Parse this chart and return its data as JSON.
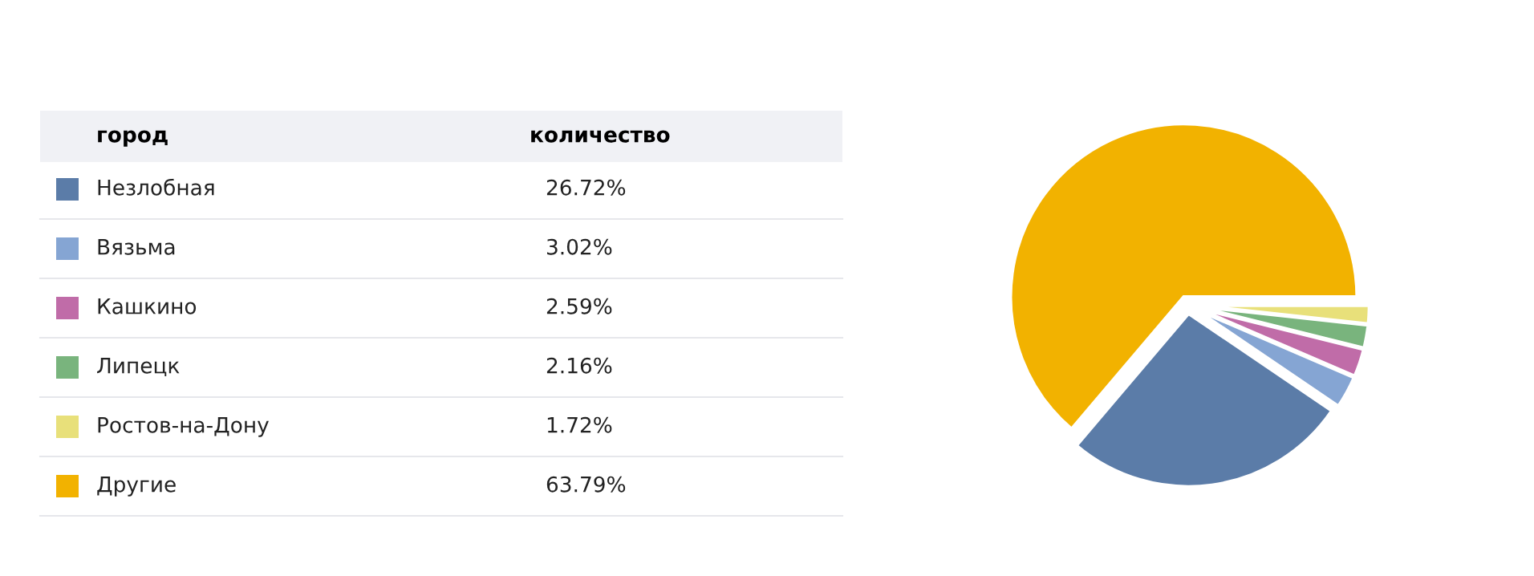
{
  "chart_data": {
    "type": "pie",
    "categories": [
      "Незлобная",
      "Вязьма",
      "Кашкино",
      "Липецк",
      "Ростов-на-Дону",
      "Другие"
    ],
    "values": [
      26.72,
      3.02,
      2.59,
      2.16,
      1.72,
      63.79
    ],
    "colors": [
      "#5b7ca8",
      "#85a5d3",
      "#c06ca8",
      "#79b47d",
      "#e8e07a",
      "#f2b200"
    ],
    "value_labels": [
      "26.72%",
      "3.02%",
      "2.59%",
      "2.16%",
      "1.72%",
      "63.79%"
    ],
    "legend_title": "город",
    "annotations": [
      "количество"
    ],
    "legend": "left"
  }
}
